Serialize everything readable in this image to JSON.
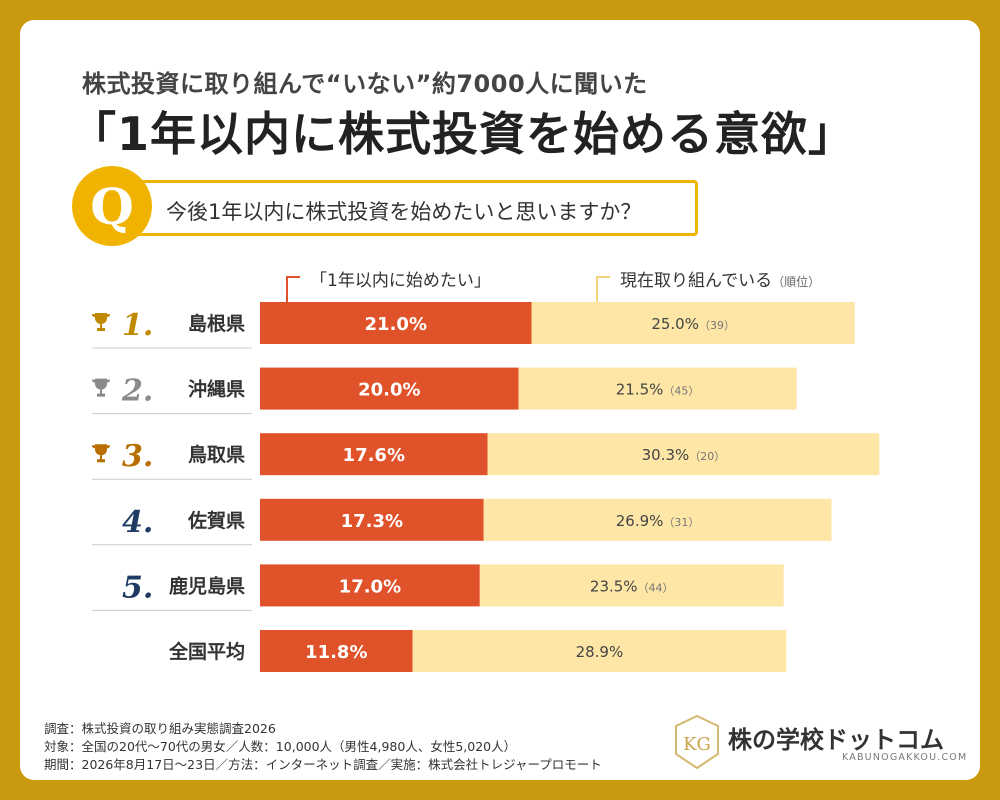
{
  "header": {
    "subtitle": "株式投資に取り組んで“いない”約7000人に聞いた",
    "title": "「1年以内に株式投資を始める意欲」"
  },
  "question": {
    "icon_letter": "Q",
    "text": "今後1年以内に株式投資を始めたいと思いますか？"
  },
  "legend": {
    "primary": "「1年以内に始めたい」",
    "secondary": "現在取り組んでいる",
    "secondary_note": "（順位）"
  },
  "colors": {
    "primary": "#e0522a",
    "secondary": "#fde6a6",
    "accent": "#f0b400",
    "frame": "#c99a10",
    "gold": "#c08a00",
    "silver": "#8a8a8a",
    "bronze": "#b86e00",
    "rank_plain": "#1f3b63"
  },
  "chart_data": {
    "type": "bar",
    "orientation": "horizontal",
    "stacked": true,
    "categories": [
      "島根県",
      "沖縄県",
      "鳥取県",
      "佐賀県",
      "鹿児島県",
      "全国平均"
    ],
    "ranks": [
      "1.",
      "2.",
      "3.",
      "4.",
      "5.",
      ""
    ],
    "rank_trophy": [
      "gold",
      "silver",
      "bronze",
      null,
      null,
      null
    ],
    "series": [
      {
        "name": "「1年以内に始めたい」",
        "values": [
          21.0,
          20.0,
          17.6,
          17.3,
          17.0,
          11.8
        ],
        "labels": [
          "21.0%",
          "20.0%",
          "17.6%",
          "17.3%",
          "17.0%",
          "11.8%"
        ]
      },
      {
        "name": "現在取り組んでいる",
        "values": [
          25.0,
          21.5,
          30.3,
          26.9,
          23.5,
          28.9
        ],
        "labels": [
          "25.0%",
          "21.5%",
          "30.3%",
          "26.9%",
          "23.5%",
          "28.9%"
        ],
        "rank_labels": [
          "（39）",
          "（45）",
          "（20）",
          "（31）",
          "（44）",
          ""
        ]
      }
    ]
  },
  "footer": {
    "line1": "調査：株式投資の取り組み実態調査2026",
    "line2": "対象：全国の20代～70代の男女／人数：10,000人（男性4,980人、女性5,020人）",
    "line3": "期間：2026年8月17日～23日／方法：インターネット調査／実施：株式会社トレジャープロモート"
  },
  "brand": {
    "name": "株の学校ドットコム",
    "url": "KABUNOGAKKOU.COM",
    "mark_letters": "KG"
  }
}
